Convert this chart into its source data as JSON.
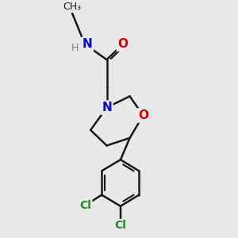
{
  "background_color": "#e8e8e8",
  "bond_color": "#1a1a1a",
  "bond_width": 1.8,
  "atom_colors": {
    "C": "#1a1a1a",
    "N": "#0000cc",
    "O": "#cc0000",
    "Cl": "#228b22",
    "H": "#888888"
  },
  "font_size": 10,
  "fig_width": 3.0,
  "fig_height": 3.0,
  "xlim": [
    0.0,
    6.0
  ],
  "ylim": [
    0.0,
    7.5
  ]
}
